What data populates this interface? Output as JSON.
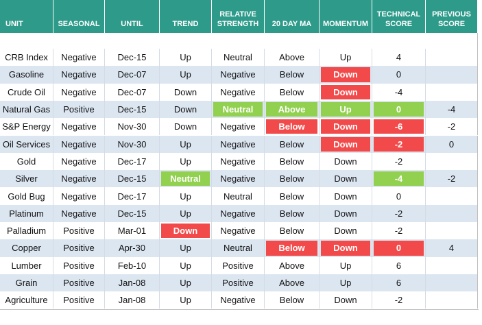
{
  "table": {
    "headers": [
      "UNIT",
      "SEASONAL",
      "UNTIL",
      "TREND",
      "RELATIVE STRENGTH",
      "20 DAY MA",
      "MOMENTUM",
      "TECHNICAL SCORE",
      "PREVIOUS SCORE"
    ],
    "rows": [
      [
        "CRB Index",
        "Negative",
        "Dec-15",
        "Up",
        "Neutral",
        "Above",
        "Up",
        "4",
        null
      ],
      [
        "Gasoline",
        "Negative",
        "Dec-07",
        "Up",
        "Negative",
        "Below",
        "Down",
        "0",
        null
      ],
      [
        "Crude Oil",
        "Negative",
        "Dec-07",
        "Down",
        "Negative",
        "Below",
        "Down",
        "-4",
        null
      ],
      [
        "Natural Gas",
        "Positive",
        "Dec-15",
        "Down",
        "Neutral",
        "Above",
        "Up",
        "0",
        "-4"
      ],
      [
        "S&P Energy",
        "Negative",
        "Nov-30",
        "Down",
        "Negative",
        "Below",
        "Down",
        "-6",
        "-2"
      ],
      [
        "Oil Services",
        "Negative",
        "Nov-30",
        "Up",
        "Negative",
        "Below",
        "Down",
        "-2",
        "0"
      ],
      [
        "Gold",
        "Negative",
        "Dec-17",
        "Up",
        "Negative",
        "Below",
        "Down",
        "-2",
        null
      ],
      [
        "Silver",
        "Negative",
        "Dec-15",
        "Neutral",
        "Negative",
        "Below",
        "Down",
        "-4",
        "-2"
      ],
      [
        "Gold Bug",
        "Negative",
        "Dec-17",
        "Up",
        "Neutral",
        "Below",
        "Down",
        "0",
        null
      ],
      [
        "Platinum",
        "Negative",
        "Dec-15",
        "Up",
        "Negative",
        "Below",
        "Down",
        "-2",
        null
      ],
      [
        "Palladium",
        "Positive",
        "Mar-01",
        "Down",
        "Negative",
        "Below",
        "Down",
        "-2",
        null
      ],
      [
        "Copper",
        "Positive",
        "Apr-30",
        "Up",
        "Neutral",
        "Below",
        "Down",
        "0",
        "4"
      ],
      [
        "Lumber",
        "Positive",
        "Feb-10",
        "Up",
        "Positive",
        "Above",
        "Up",
        "6",
        null
      ],
      [
        "Grain",
        "Positive",
        "Jan-08",
        "Up",
        "Positive",
        "Above",
        "Up",
        "6",
        null
      ],
      [
        "Agriculture",
        "Positive",
        "Jan-08",
        "Up",
        "Negative",
        "Below",
        "Down",
        "-2",
        null
      ]
    ],
    "colors": {
      "red": "#f24a4a",
      "green": "#92d050",
      "band": "#dce6f1"
    },
    "highlights": [
      {
        "row": 1,
        "col": 6,
        "color": "red"
      },
      {
        "row": 2,
        "col": 6,
        "color": "red"
      },
      {
        "row": 3,
        "col": 4,
        "color": "green"
      },
      {
        "row": 3,
        "col": 5,
        "color": "green"
      },
      {
        "row": 3,
        "col": 6,
        "color": "green"
      },
      {
        "row": 3,
        "col": 7,
        "color": "green"
      },
      {
        "row": 4,
        "col": 5,
        "color": "red"
      },
      {
        "row": 4,
        "col": 6,
        "color": "red"
      },
      {
        "row": 4,
        "col": 7,
        "color": "red"
      },
      {
        "row": 5,
        "col": 6,
        "color": "red"
      },
      {
        "row": 5,
        "col": 7,
        "color": "red"
      },
      {
        "row": 7,
        "col": 3,
        "color": "green"
      },
      {
        "row": 7,
        "col": 7,
        "color": "green"
      },
      {
        "row": 10,
        "col": 3,
        "color": "red"
      },
      {
        "row": 11,
        "col": 5,
        "color": "red"
      },
      {
        "row": 11,
        "col": 6,
        "color": "red"
      },
      {
        "row": 11,
        "col": 7,
        "color": "red"
      }
    ]
  }
}
